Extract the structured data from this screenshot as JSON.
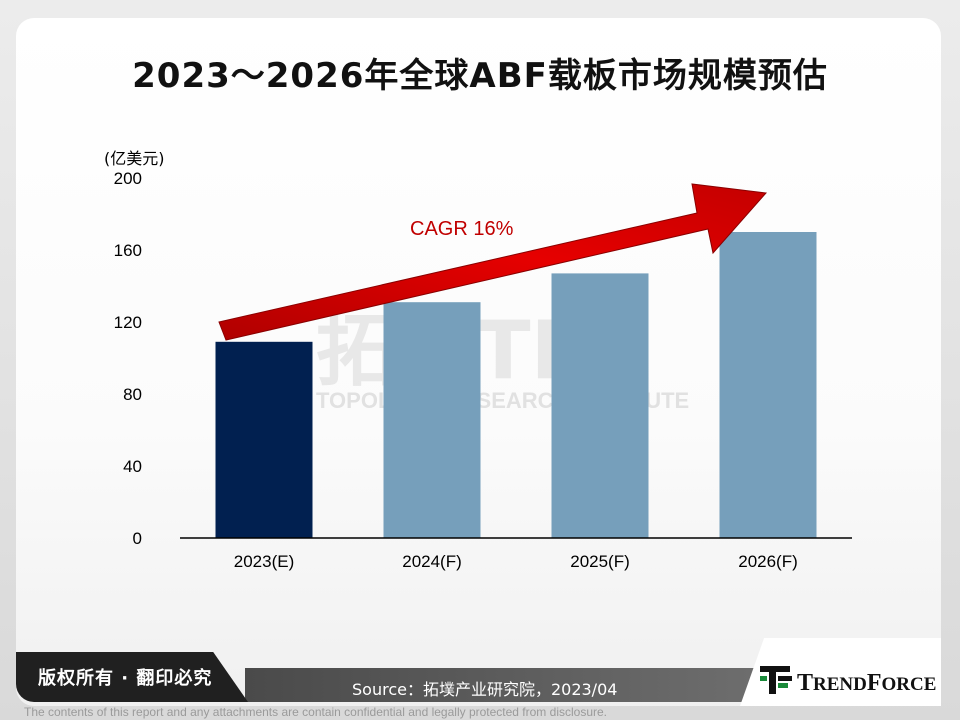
{
  "slide": {
    "title": "2023～2026年全球ABF载板市场规模预估",
    "watermark_main": "拓墣TRi",
    "watermark_sub": "TOPOLOGY RESEARCH INSTITUTE",
    "copyright": "版权所有 · 翻印必究",
    "source": "Source：拓墣产业研究院，2023/04",
    "disclaimer": "The contents of this report and any attachments are contain confidential and legally protected from disclosure.",
    "logo_text_big_t": "T",
    "logo_text_rend": "REND",
    "logo_text_big_f": "F",
    "logo_text_orce": "ORCE"
  },
  "chart_data": {
    "type": "bar",
    "title": "2023～2026年全球ABF载板市场规模预估",
    "unit_label": "(亿美元)",
    "categories": [
      "2023(E)",
      "2024(F)",
      "2025(F)",
      "2026(F)"
    ],
    "values": [
      109,
      131,
      147,
      170
    ],
    "bar_colors": [
      "#012050",
      "#769fbb",
      "#769fbb",
      "#769fbb"
    ],
    "ylim": [
      0,
      200
    ],
    "yticks": [
      0,
      40,
      80,
      120,
      160,
      200
    ],
    "ytick_labels": [
      "0",
      "40",
      "80",
      "120",
      "160",
      "200"
    ],
    "annotation": "CAGR 16%",
    "annotation_color": "#c00000",
    "grid": false,
    "legend": "none"
  }
}
